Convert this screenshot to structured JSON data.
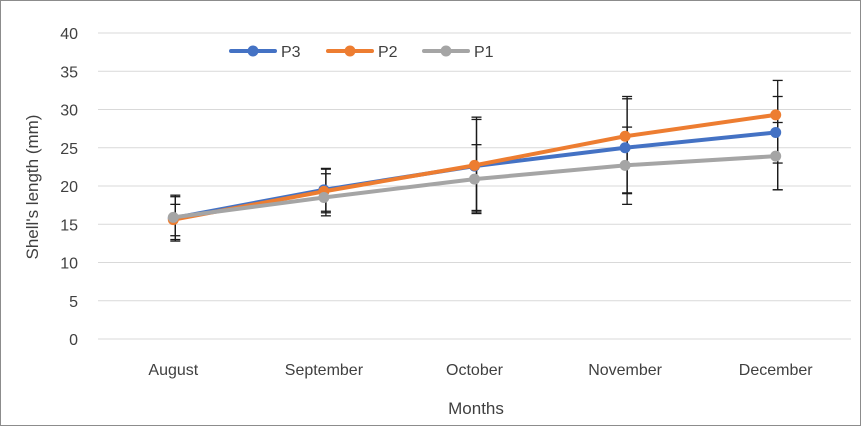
{
  "chart_data": {
    "type": "line",
    "title": "",
    "xlabel": "Months",
    "ylabel": "Shell's length (mm)",
    "categories": [
      "August",
      "September",
      "October",
      "November",
      "December"
    ],
    "ylim": [
      0,
      40
    ],
    "yticks": [
      0,
      5,
      10,
      15,
      20,
      25,
      30,
      35,
      40
    ],
    "grid": true,
    "legend_position": "top-left",
    "series": [
      {
        "name": "P3",
        "color": "#4472C4",
        "values": [
          15.8,
          19.5,
          22.6,
          25.0,
          27.0
        ],
        "error_low": [
          12.8,
          16.5,
          16.4,
          17.6,
          19.5
        ],
        "error_high": [
          18.6,
          22.2,
          28.7,
          31.4,
          31.7
        ]
      },
      {
        "name": "P2",
        "color": "#ED7D31",
        "values": [
          15.6,
          19.3,
          22.7,
          26.5,
          29.3
        ],
        "error_low": [
          13.0,
          16.7,
          16.8,
          19.0,
          23.0
        ],
        "error_high": [
          18.8,
          22.3,
          29.0,
          31.7,
          33.8
        ]
      },
      {
        "name": "P1",
        "color": "#A5A5A5",
        "values": [
          15.9,
          18.5,
          20.9,
          22.7,
          23.9
        ],
        "error_low": [
          13.5,
          16.1,
          16.6,
          19.1,
          19.5
        ],
        "error_high": [
          17.6,
          21.6,
          25.4,
          27.7,
          28.3
        ]
      }
    ]
  }
}
